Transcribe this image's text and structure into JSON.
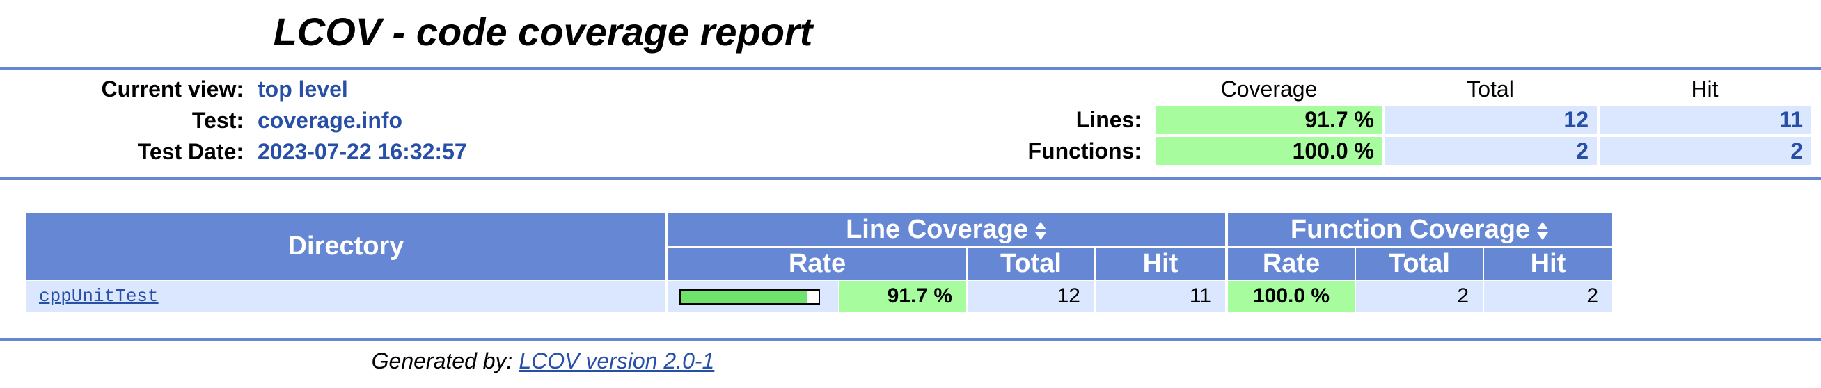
{
  "header": {
    "title": "LCOV - code coverage report",
    "current_view_label": "Current view:",
    "current_view_value": "top level",
    "test_label": "Test:",
    "test_value": "coverage.info",
    "test_date_label": "Test Date:",
    "test_date_value": "2023-07-22 16:32:57"
  },
  "summary": {
    "col_coverage": "Coverage",
    "col_total": "Total",
    "col_hit": "Hit",
    "lines_label": "Lines:",
    "lines_coverage": "91.7 %",
    "lines_total": "12",
    "lines_hit": "11",
    "functions_label": "Functions:",
    "functions_coverage": "100.0 %",
    "functions_total": "2",
    "functions_hit": "2"
  },
  "table": {
    "directory_header": "Directory",
    "line_coverage_header": "Line Coverage",
    "function_coverage_header": "Function Coverage",
    "rate_header": "Rate",
    "total_header": "Total",
    "hit_header": "Hit",
    "rows": [
      {
        "directory": "cppUnitTest",
        "line_bar_fraction": 0.917,
        "line_rate": "91.7 %",
        "line_total": "12",
        "line_hit": "11",
        "func_rate": "100.0 %",
        "func_total": "2",
        "func_hit": "2"
      }
    ]
  },
  "footer": {
    "generated_by": "Generated by:",
    "tool_link": "LCOV version 2.0-1"
  },
  "colors": {
    "ruler": "#6688d4",
    "high_coverage": "#a7fc9d",
    "number_cell": "#dae7fe",
    "bar_fill": "#6fe36b"
  }
}
